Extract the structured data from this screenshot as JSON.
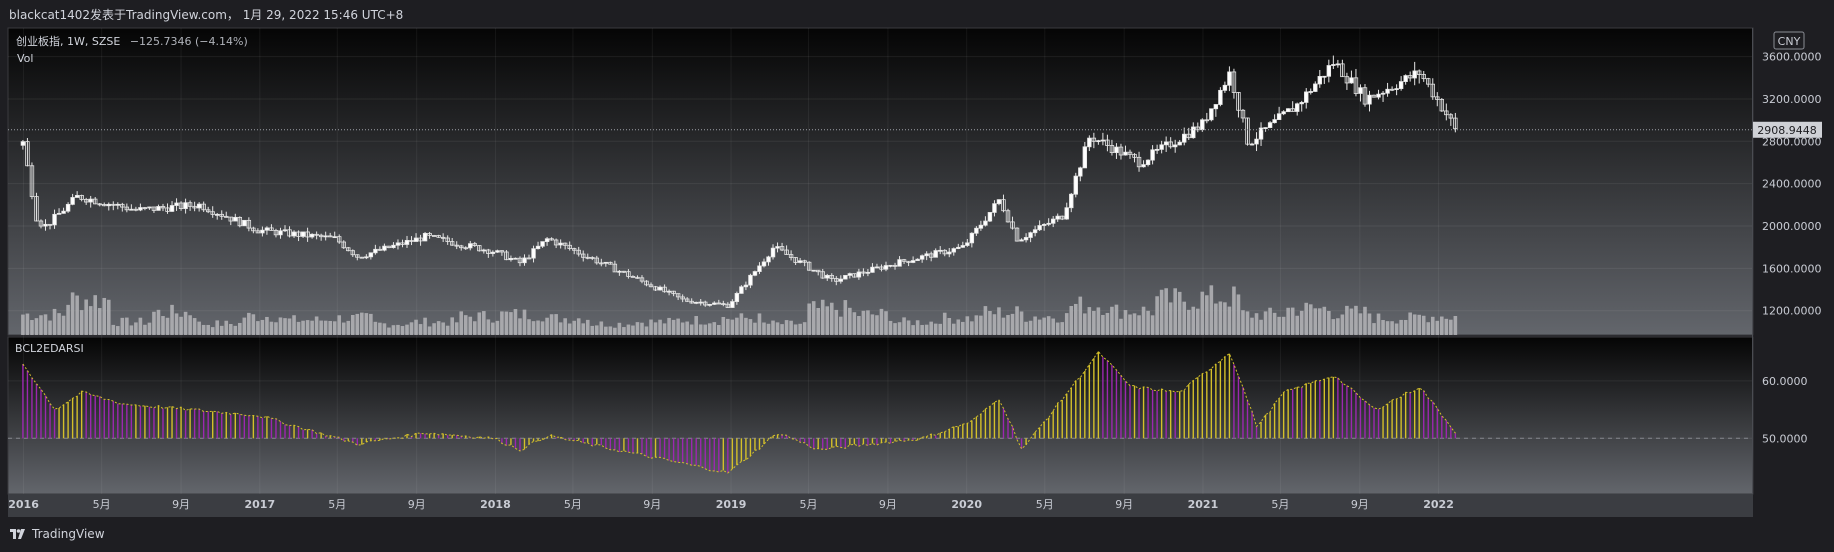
{
  "caption": "blackcat1402发表于TradingView.com， 1月 29, 2022 15:46 UTC+8",
  "brand": {
    "name": "TradingView"
  },
  "colors": {
    "background_top": "#050505",
    "background_bottom": "#63666c",
    "candle": "#e6e6e6",
    "volume": "#b5b5b8",
    "hist_down": "#9c27b0",
    "hist_up": "#d4c02a",
    "line": "#d4c02a"
  },
  "main_pane": {
    "symbol_line": "创业板指, 1W, SZSE",
    "change_text": "−125.7346 (−4.14%)",
    "volume_label": "Vol",
    "currency_badge": "CNY",
    "last_price_label": "2908.9448",
    "price_ticks": [
      "3600.0000",
      "3200.0000",
      "2800.0000",
      "2400.0000",
      "2000.0000",
      "1600.0000",
      "1200.0000"
    ]
  },
  "indicator_pane": {
    "name": "BCL2EDARSI",
    "ticks": [
      "60.0000",
      "50.0000"
    ]
  },
  "time_axis": {
    "labels": [
      "2016",
      "5月",
      "9月",
      "2017",
      "5月",
      "9月",
      "2018",
      "5月",
      "9月",
      "2019",
      "5月",
      "9月",
      "2020",
      "5月",
      "9月",
      "2021",
      "5月",
      "9月",
      "2022"
    ]
  },
  "chart_data": [
    {
      "type": "candlestick",
      "title": "创业板指, 1W, SZSE",
      "ylim": [
        1000,
        3720
      ],
      "anchors": [
        {
          "t": "2015-12-31",
          "close": 2790
        },
        {
          "t": "2016-01-22",
          "close": 2050
        },
        {
          "t": "2016-02-05",
          "close": 2000
        },
        {
          "t": "2016-03-25",
          "close": 2280
        },
        {
          "t": "2016-06-24",
          "close": 2150
        },
        {
          "t": "2016-09-30",
          "close": 2200
        },
        {
          "t": "2016-12-30",
          "close": 1960
        },
        {
          "t": "2017-04-28",
          "close": 1880
        },
        {
          "t": "2017-06-02",
          "close": 1710
        },
        {
          "t": "2017-09-15",
          "close": 1900
        },
        {
          "t": "2017-12-29",
          "close": 1760
        },
        {
          "t": "2018-02-09",
          "close": 1650
        },
        {
          "t": "2018-03-23",
          "close": 1880
        },
        {
          "t": "2018-06-29",
          "close": 1610
        },
        {
          "t": "2018-10-19",
          "close": 1300
        },
        {
          "t": "2018-12-28",
          "close": 1250
        },
        {
          "t": "2019-03-08",
          "close": 1800
        },
        {
          "t": "2019-06-07",
          "close": 1480
        },
        {
          "t": "2019-09-13",
          "close": 1650
        },
        {
          "t": "2019-12-27",
          "close": 1800
        },
        {
          "t": "2020-02-21",
          "close": 2250
        },
        {
          "t": "2020-03-20",
          "close": 1870
        },
        {
          "t": "2020-05-29",
          "close": 2100
        },
        {
          "t": "2020-07-10",
          "close": 2850
        },
        {
          "t": "2020-09-25",
          "close": 2600
        },
        {
          "t": "2020-12-31",
          "close": 2960
        },
        {
          "t": "2021-02-12",
          "close": 3450
        },
        {
          "t": "2021-03-12",
          "close": 2780
        },
        {
          "t": "2021-05-28",
          "close": 3150
        },
        {
          "t": "2021-07-23",
          "close": 3550
        },
        {
          "t": "2021-09-10",
          "close": 3200
        },
        {
          "t": "2021-12-03",
          "close": 3450
        },
        {
          "t": "2022-01-14",
          "close": 3050
        },
        {
          "t": "2022-01-28",
          "close": 2908.9448
        }
      ]
    },
    {
      "type": "bar",
      "title": "Vol",
      "series": [
        {
          "values_relative": [
            0.55,
            0.95,
            0.35,
            0.6,
            0.3,
            0.5,
            0.4,
            0.45,
            0.3,
            0.35,
            0.5,
            0.55,
            0.45,
            0.3,
            0.35,
            0.4,
            0.45,
            0.3,
            0.7,
            0.55,
            0.35,
            0.45,
            0.6,
            0.5,
            0.8,
            0.65,
            0.95,
            1.0,
            0.55,
            0.7,
            0.6,
            0.45,
            0.5
          ]
        }
      ]
    },
    {
      "type": "area",
      "title": "BCL2EDARSI",
      "ylim": [
        40,
        68
      ],
      "hlines": [
        50
      ],
      "anchors": [
        {
          "t": "2015-12-31",
          "v": 63
        },
        {
          "t": "2016-02-19",
          "v": 55
        },
        {
          "t": "2016-04-01",
          "v": 58
        },
        {
          "t": "2016-06-03",
          "v": 56
        },
        {
          "t": "2016-12-30",
          "v": 54
        },
        {
          "t": "2017-06-02",
          "v": 49
        },
        {
          "t": "2017-09-15",
          "v": 51
        },
        {
          "t": "2017-12-29",
          "v": 50
        },
        {
          "t": "2018-02-09",
          "v": 48
        },
        {
          "t": "2018-03-23",
          "v": 50.5
        },
        {
          "t": "2018-07-06",
          "v": 48
        },
        {
          "t": "2018-12-28",
          "v": 44
        },
        {
          "t": "2019-03-15",
          "v": 51
        },
        {
          "t": "2019-05-17",
          "v": 48
        },
        {
          "t": "2019-10-25",
          "v": 50
        },
        {
          "t": "2020-01-10",
          "v": 53
        },
        {
          "t": "2020-02-21",
          "v": 57
        },
        {
          "t": "2020-03-27",
          "v": 48
        },
        {
          "t": "2020-05-08",
          "v": 54
        },
        {
          "t": "2020-07-24",
          "v": 65
        },
        {
          "t": "2020-09-11",
          "v": 59
        },
        {
          "t": "2020-11-27",
          "v": 58
        },
        {
          "t": "2021-02-12",
          "v": 65
        },
        {
          "t": "2021-03-26",
          "v": 52
        },
        {
          "t": "2021-05-07",
          "v": 58
        },
        {
          "t": "2021-07-23",
          "v": 61
        },
        {
          "t": "2021-09-24",
          "v": 55
        },
        {
          "t": "2021-12-03",
          "v": 59
        },
        {
          "t": "2022-01-28",
          "v": 51
        }
      ]
    }
  ]
}
